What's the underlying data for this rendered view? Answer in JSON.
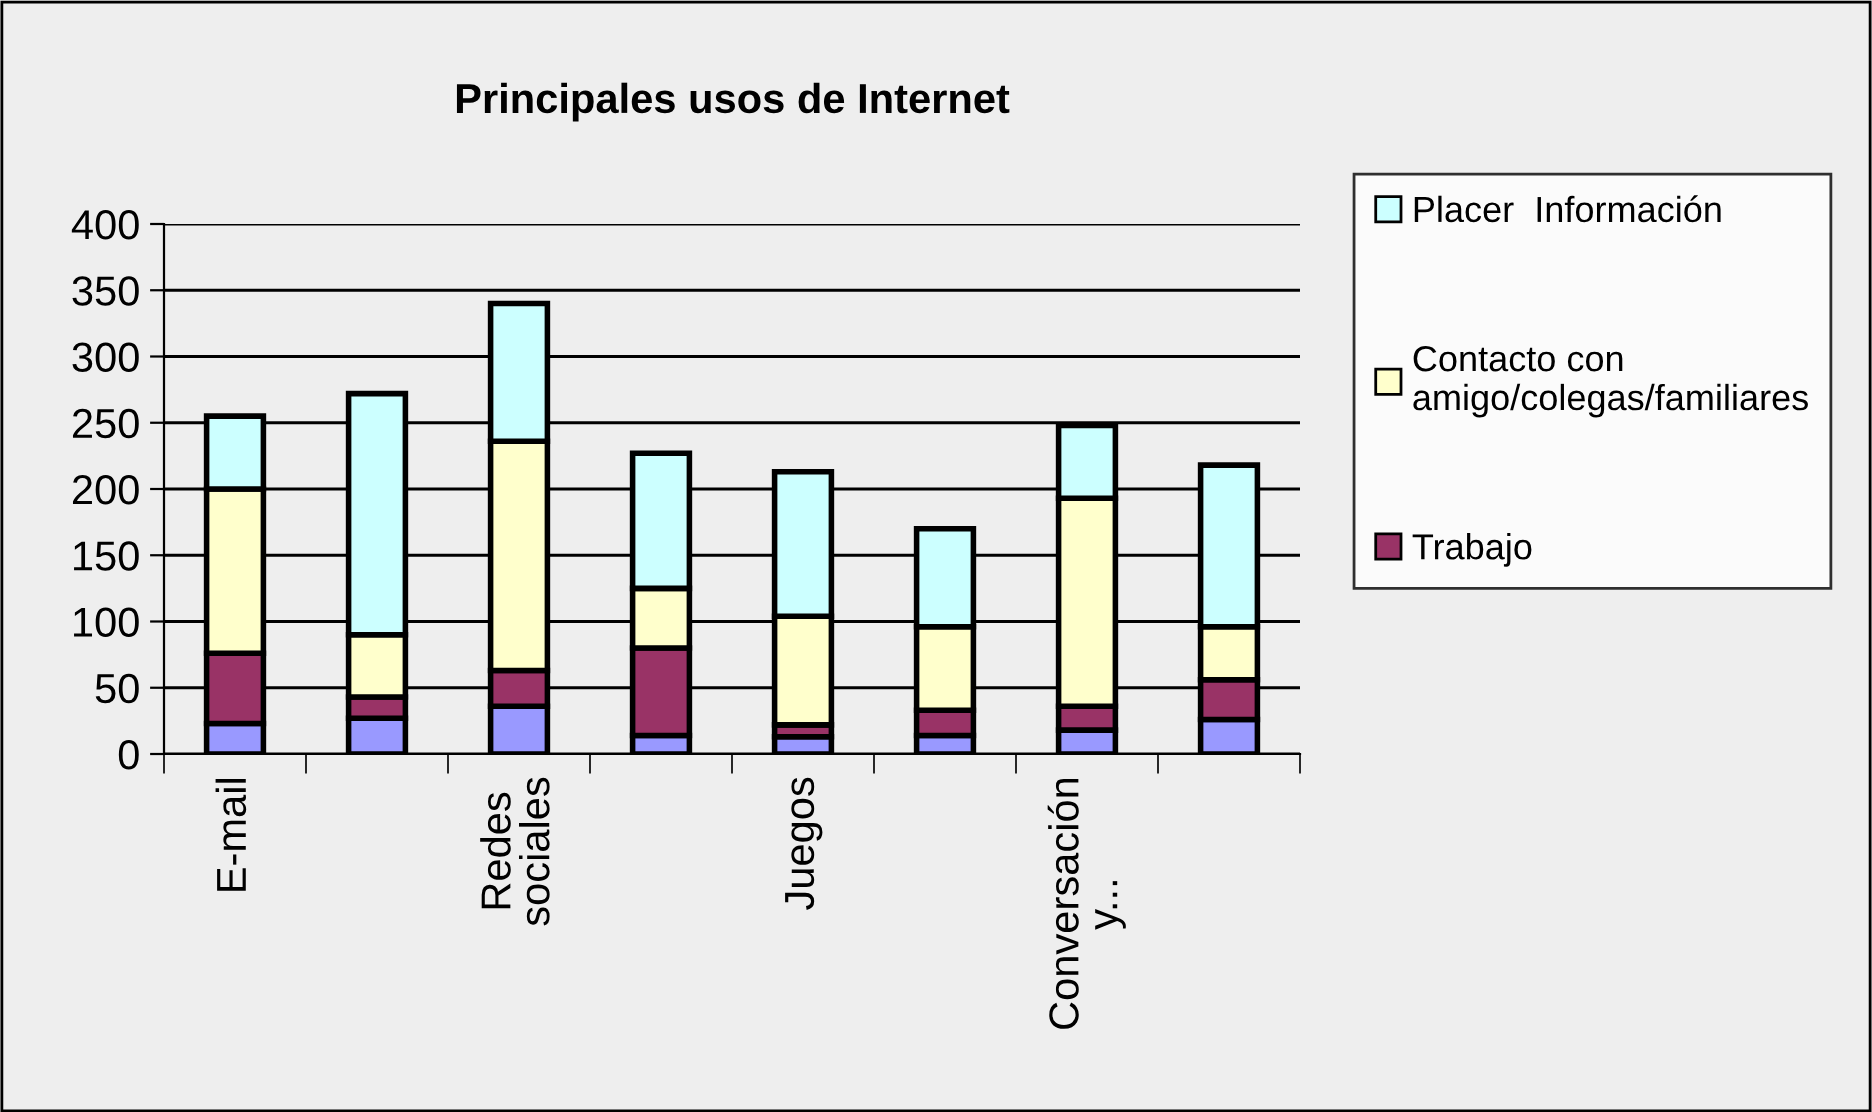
{
  "chart_data": {
    "type": "bar",
    "title": "Principales usos de Internet",
    "stacked": true,
    "categories": [
      "E-mail",
      null,
      "Redes sociales",
      null,
      "Juegos",
      null,
      "Conversación y...",
      null
    ],
    "series": [
      {
        "color": "#9999ff",
        "values": [
          23,
          27,
          36,
          14,
          13,
          14,
          18,
          26
        ]
      },
      {
        "name": "Trabajo",
        "color": "#993366",
        "values": [
          53,
          16,
          27,
          66,
          9,
          19,
          18,
          30
        ]
      },
      {
        "name": "Contacto con amigo/colegas/familiares",
        "color": "#ffffcc",
        "values": [
          124,
          47,
          173,
          45,
          82,
          63,
          157,
          40
        ]
      },
      {
        "name": "Placer  Información",
        "color": "#ccffff",
        "values": [
          55,
          182,
          104,
          102,
          109,
          74,
          55,
          122
        ]
      }
    ],
    "ylim": [
      0,
      400
    ],
    "yticks": [
      0,
      50,
      100,
      150,
      200,
      250,
      300,
      350,
      400
    ],
    "grid": "y",
    "legend": "right"
  }
}
